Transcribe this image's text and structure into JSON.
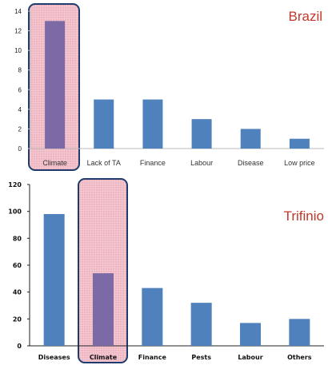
{
  "chart_data": [
    {
      "type": "bar",
      "title": "Brazil",
      "categories": [
        "Climate",
        "Lack of TA",
        "Finance",
        "Labour",
        "Disease",
        "Low price"
      ],
      "values": [
        13,
        5,
        5,
        3,
        2,
        1
      ],
      "ylim": [
        0,
        14
      ],
      "yticks": [
        0,
        2,
        4,
        6,
        8,
        10,
        12,
        14
      ],
      "xlabel": "",
      "ylabel": "",
      "grid": false,
      "highlighted_category": "Climate",
      "colors": {
        "bar": "#4f81bd",
        "highlight_bar": "#7b6aa6",
        "highlight_fill": "#f4c6cf",
        "highlight_border": "#1f3b6e",
        "label": "#c0392b"
      }
    },
    {
      "type": "bar",
      "title": "Trifinio",
      "categories": [
        "Diseases",
        "Climate",
        "Finance",
        "Pests",
        "Labour",
        "Others"
      ],
      "values": [
        98,
        54,
        43,
        32,
        17,
        20
      ],
      "ylim": [
        0,
        120
      ],
      "yticks": [
        0,
        20,
        40,
        60,
        80,
        100,
        120
      ],
      "xlabel": "",
      "ylabel": "",
      "grid": false,
      "highlighted_category": "Climate",
      "colors": {
        "bar": "#4f81bd",
        "highlight_bar": "#7b6aa6",
        "highlight_fill": "#f4c6cf",
        "highlight_border": "#1f3b6e",
        "label": "#c0392b"
      }
    }
  ]
}
